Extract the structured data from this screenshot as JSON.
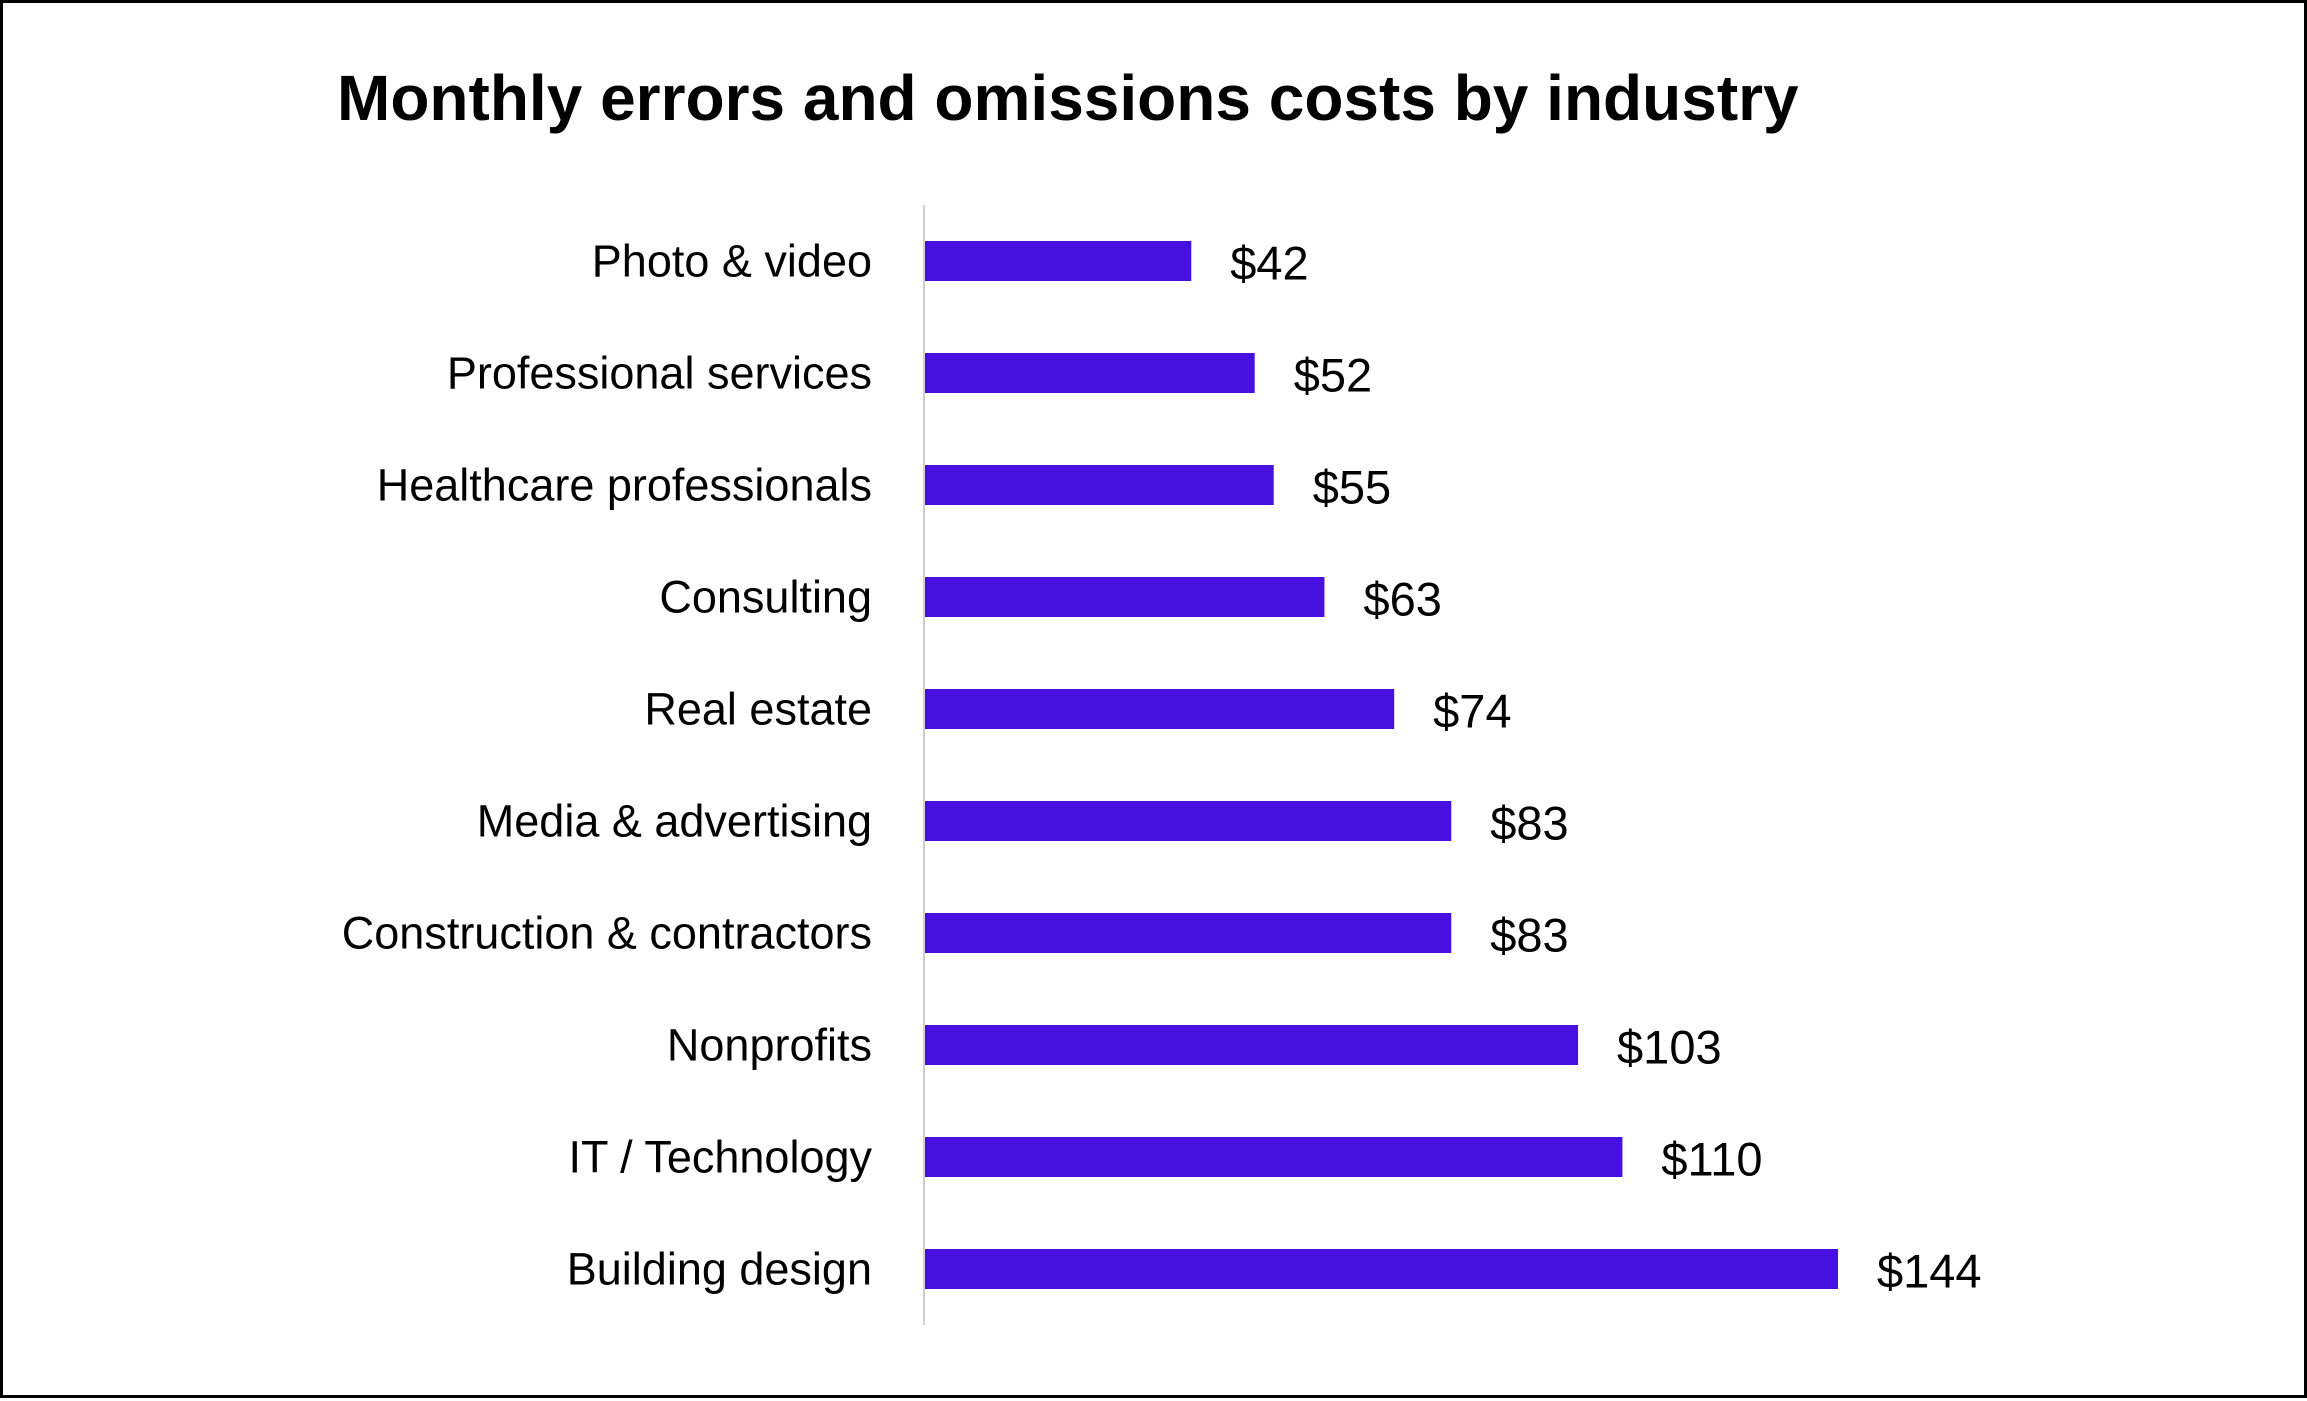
{
  "chart_data": {
    "type": "bar",
    "orientation": "horizontal",
    "title": "Monthly errors and omissions costs by industry",
    "categories": [
      "Photo & video",
      "Professional services",
      "Healthcare professionals",
      "Consulting",
      "Real estate",
      "Media & advertising",
      "Construction & contractors",
      "Nonprofits",
      "IT / Technology",
      "Building design"
    ],
    "values": [
      42,
      52,
      55,
      63,
      74,
      83,
      83,
      103,
      110,
      144
    ],
    "value_labels": [
      "$42",
      "$52",
      "$55",
      "$63",
      "$74",
      "$83",
      "$83",
      "$103",
      "$110",
      "$144"
    ],
    "xlim": [
      0,
      160
    ],
    "grid": false,
    "legend": "none",
    "bar_color": "#4610e0",
    "axis_color": "#d0d0d0"
  }
}
